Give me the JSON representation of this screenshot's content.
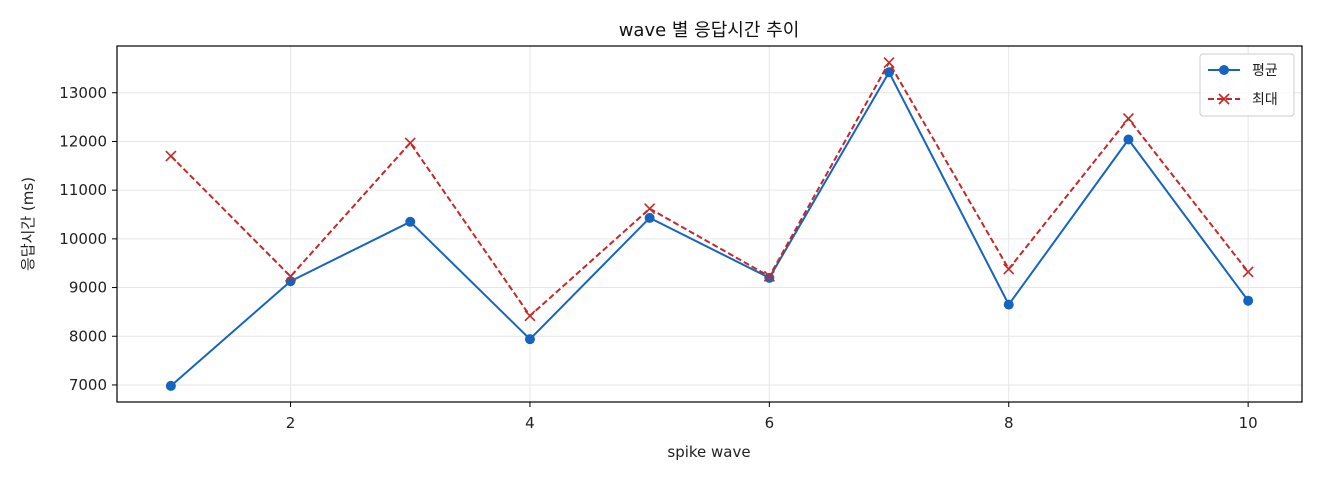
{
  "chart_data": {
    "type": "line",
    "title": "wave 별 응답시간 추이",
    "xlabel": "spike wave",
    "ylabel": "응답시간 (ms)",
    "x": [
      1,
      2,
      3,
      4,
      5,
      6,
      7,
      8,
      9,
      10
    ],
    "xlim": [
      0.55,
      10.45
    ],
    "ylim": [
      6650,
      13960
    ],
    "x_ticks": [
      2,
      4,
      6,
      8,
      10
    ],
    "y_ticks": [
      7000,
      8000,
      9000,
      10000,
      11000,
      12000,
      13000
    ],
    "grid": true,
    "legend_position": "top-right",
    "series": [
      {
        "name": "평균",
        "values": [
          6980,
          9130,
          10350,
          7940,
          10430,
          9200,
          13420,
          8650,
          12040,
          8730
        ],
        "color": "#1565c0",
        "line_style": "solid",
        "marker": "circle"
      },
      {
        "name": "최대",
        "values": [
          11700,
          9230,
          11970,
          8420,
          10620,
          9230,
          13620,
          9380,
          12470,
          9320
        ],
        "color": "#c62828",
        "line_style": "dashed",
        "marker": "x"
      }
    ]
  }
}
